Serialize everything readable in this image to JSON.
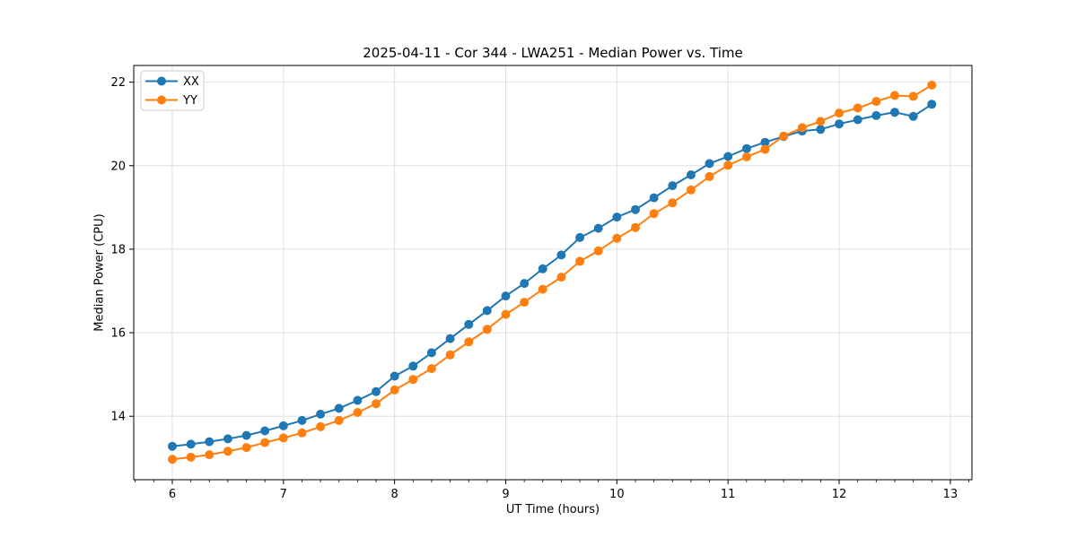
{
  "chart_data": {
    "type": "line",
    "title": "2025-04-11 - Cor 344 - LWA251 - Median Power vs. Time",
    "xlabel": "UT Time (hours)",
    "ylabel": "Median Power (CPU)",
    "xlim": [
      5.653,
      13.195
    ],
    "ylim": [
      12.48,
      22.4
    ],
    "xticks": [
      6,
      7,
      8,
      9,
      10,
      11,
      12,
      13
    ],
    "yticks": [
      14,
      16,
      18,
      20,
      22
    ],
    "x_minor_tick_step": 0.166667,
    "grid": true,
    "legend_position": "upper left",
    "colors": {
      "grid": "#e0e0e0",
      "spine": "#000000",
      "text": "#000000",
      "legend_border": "#cccccc",
      "legend_bg": "#ffffff"
    },
    "x": [
      6.0,
      6.167,
      6.333,
      6.5,
      6.667,
      6.833,
      7.0,
      7.167,
      7.333,
      7.5,
      7.667,
      7.833,
      8.0,
      8.167,
      8.333,
      8.5,
      8.667,
      8.833,
      9.0,
      9.167,
      9.333,
      9.5,
      9.667,
      9.833,
      10.0,
      10.167,
      10.333,
      10.5,
      10.667,
      10.833,
      11.0,
      11.167,
      11.333,
      11.5,
      11.667,
      11.833,
      12.0,
      12.167,
      12.333,
      12.5,
      12.667,
      12.833
    ],
    "series": [
      {
        "name": "XX",
        "color": "#1f77b4",
        "values": [
          13.28,
          13.33,
          13.39,
          13.46,
          13.54,
          13.65,
          13.77,
          13.9,
          14.05,
          14.19,
          14.38,
          14.59,
          14.96,
          15.2,
          15.52,
          15.86,
          16.2,
          16.53,
          16.88,
          17.18,
          17.53,
          17.86,
          18.28,
          18.5,
          18.77,
          18.95,
          19.23,
          19.52,
          19.78,
          20.05,
          20.22,
          20.41,
          20.56,
          20.7,
          20.83,
          20.87,
          21.0,
          21.1,
          21.2,
          21.28,
          21.18,
          21.47
        ]
      },
      {
        "name": "YY",
        "color": "#ff7f0e",
        "values": [
          12.97,
          13.02,
          13.08,
          13.16,
          13.25,
          13.37,
          13.48,
          13.6,
          13.75,
          13.9,
          14.09,
          14.3,
          14.63,
          14.88,
          15.14,
          15.47,
          15.78,
          16.08,
          16.44,
          16.73,
          17.04,
          17.33,
          17.71,
          17.96,
          18.26,
          18.52,
          18.85,
          19.11,
          19.42,
          19.74,
          20.01,
          20.21,
          20.39,
          20.71,
          20.91,
          21.06,
          21.26,
          21.38,
          21.54,
          21.68,
          21.66,
          21.93
        ]
      }
    ]
  }
}
